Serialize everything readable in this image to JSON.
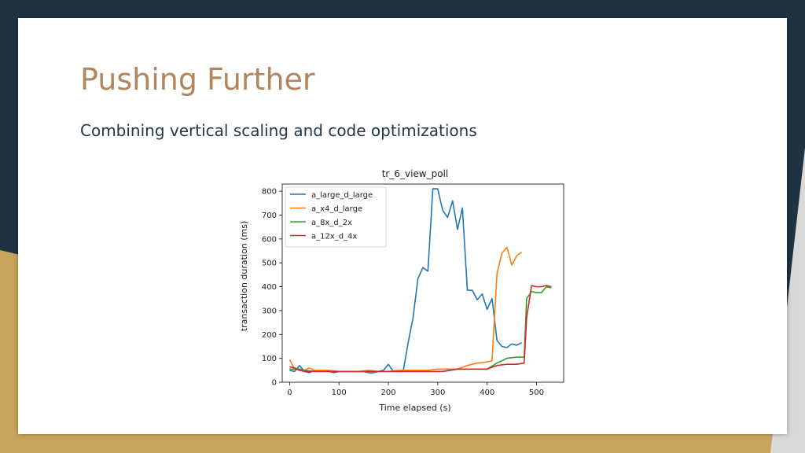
{
  "slide": {
    "title": "Pushing Further",
    "subtitle": "Combining vertical scaling and code optimizations",
    "colors": {
      "title": "#b3855e",
      "subtitle": "#243846",
      "frame_dark": "#1f3340",
      "frame_gold": "#c9a45d"
    }
  },
  "chart_data": {
    "type": "line",
    "title": "tr_6_view_poll",
    "xlabel": "Time elapsed (s)",
    "ylabel": "transaction duration (ms)",
    "xlim": [
      -15,
      555
    ],
    "ylim": [
      0,
      830
    ],
    "xticks": [
      0,
      100,
      200,
      300,
      400,
      500
    ],
    "yticks": [
      0,
      100,
      200,
      300,
      400,
      500,
      600,
      700,
      800
    ],
    "grid": false,
    "legend_position": "top-left",
    "series": [
      {
        "name": "a_large_d_large",
        "color": "#1f77b4",
        "x": [
          0,
          10,
          20,
          30,
          40,
          50,
          60,
          70,
          80,
          90,
          100,
          110,
          120,
          130,
          140,
          150,
          160,
          170,
          180,
          190,
          200,
          210,
          220,
          230,
          240,
          250,
          260,
          270,
          280,
          290,
          300,
          310,
          320,
          330,
          340,
          350,
          360,
          370,
          380,
          390,
          400,
          410,
          420,
          430,
          440,
          450,
          460,
          470
        ],
        "y": [
          50,
          45,
          70,
          45,
          40,
          50,
          50,
          45,
          45,
          40,
          45,
          45,
          45,
          45,
          45,
          45,
          40,
          40,
          45,
          50,
          75,
          45,
          45,
          45,
          165,
          270,
          435,
          480,
          465,
          810,
          810,
          720,
          690,
          760,
          640,
          730,
          385,
          385,
          345,
          370,
          305,
          350,
          175,
          150,
          145,
          160,
          155,
          165
        ]
      },
      {
        "name": "a_x4_d_large",
        "color": "#ff7f0e",
        "x": [
          0,
          10,
          20,
          30,
          40,
          50,
          60,
          70,
          80,
          100,
          120,
          140,
          160,
          180,
          200,
          220,
          240,
          260,
          280,
          300,
          320,
          340,
          360,
          380,
          400,
          410,
          420,
          430,
          440,
          450,
          460,
          470
        ],
        "y": [
          95,
          55,
          50,
          50,
          60,
          50,
          50,
          50,
          50,
          45,
          45,
          45,
          50,
          45,
          45,
          50,
          50,
          50,
          50,
          55,
          55,
          55,
          70,
          80,
          85,
          90,
          455,
          540,
          565,
          490,
          530,
          545
        ]
      },
      {
        "name": "a_8x_d_2x",
        "color": "#2ca02c",
        "x": [
          0,
          10,
          20,
          30,
          50,
          70,
          100,
          130,
          160,
          190,
          220,
          250,
          280,
          310,
          340,
          370,
          400,
          420,
          440,
          460,
          475,
          480,
          490,
          500,
          510,
          520,
          530
        ],
        "y": [
          55,
          55,
          55,
          50,
          45,
          45,
          45,
          45,
          45,
          45,
          45,
          45,
          45,
          45,
          55,
          55,
          55,
          80,
          100,
          105,
          105,
          350,
          380,
          375,
          375,
          400,
          395
        ]
      },
      {
        "name": "a_12x_d_4x",
        "color": "#d62728",
        "x": [
          0,
          10,
          20,
          30,
          50,
          70,
          100,
          130,
          160,
          190,
          220,
          250,
          280,
          310,
          340,
          370,
          400,
          420,
          440,
          460,
          475,
          480,
          490,
          500,
          510,
          520,
          530
        ],
        "y": [
          65,
          60,
          50,
          45,
          45,
          45,
          45,
          45,
          45,
          45,
          45,
          45,
          45,
          45,
          55,
          55,
          55,
          70,
          75,
          75,
          80,
          270,
          405,
          400,
          400,
          405,
          400
        ]
      }
    ]
  }
}
